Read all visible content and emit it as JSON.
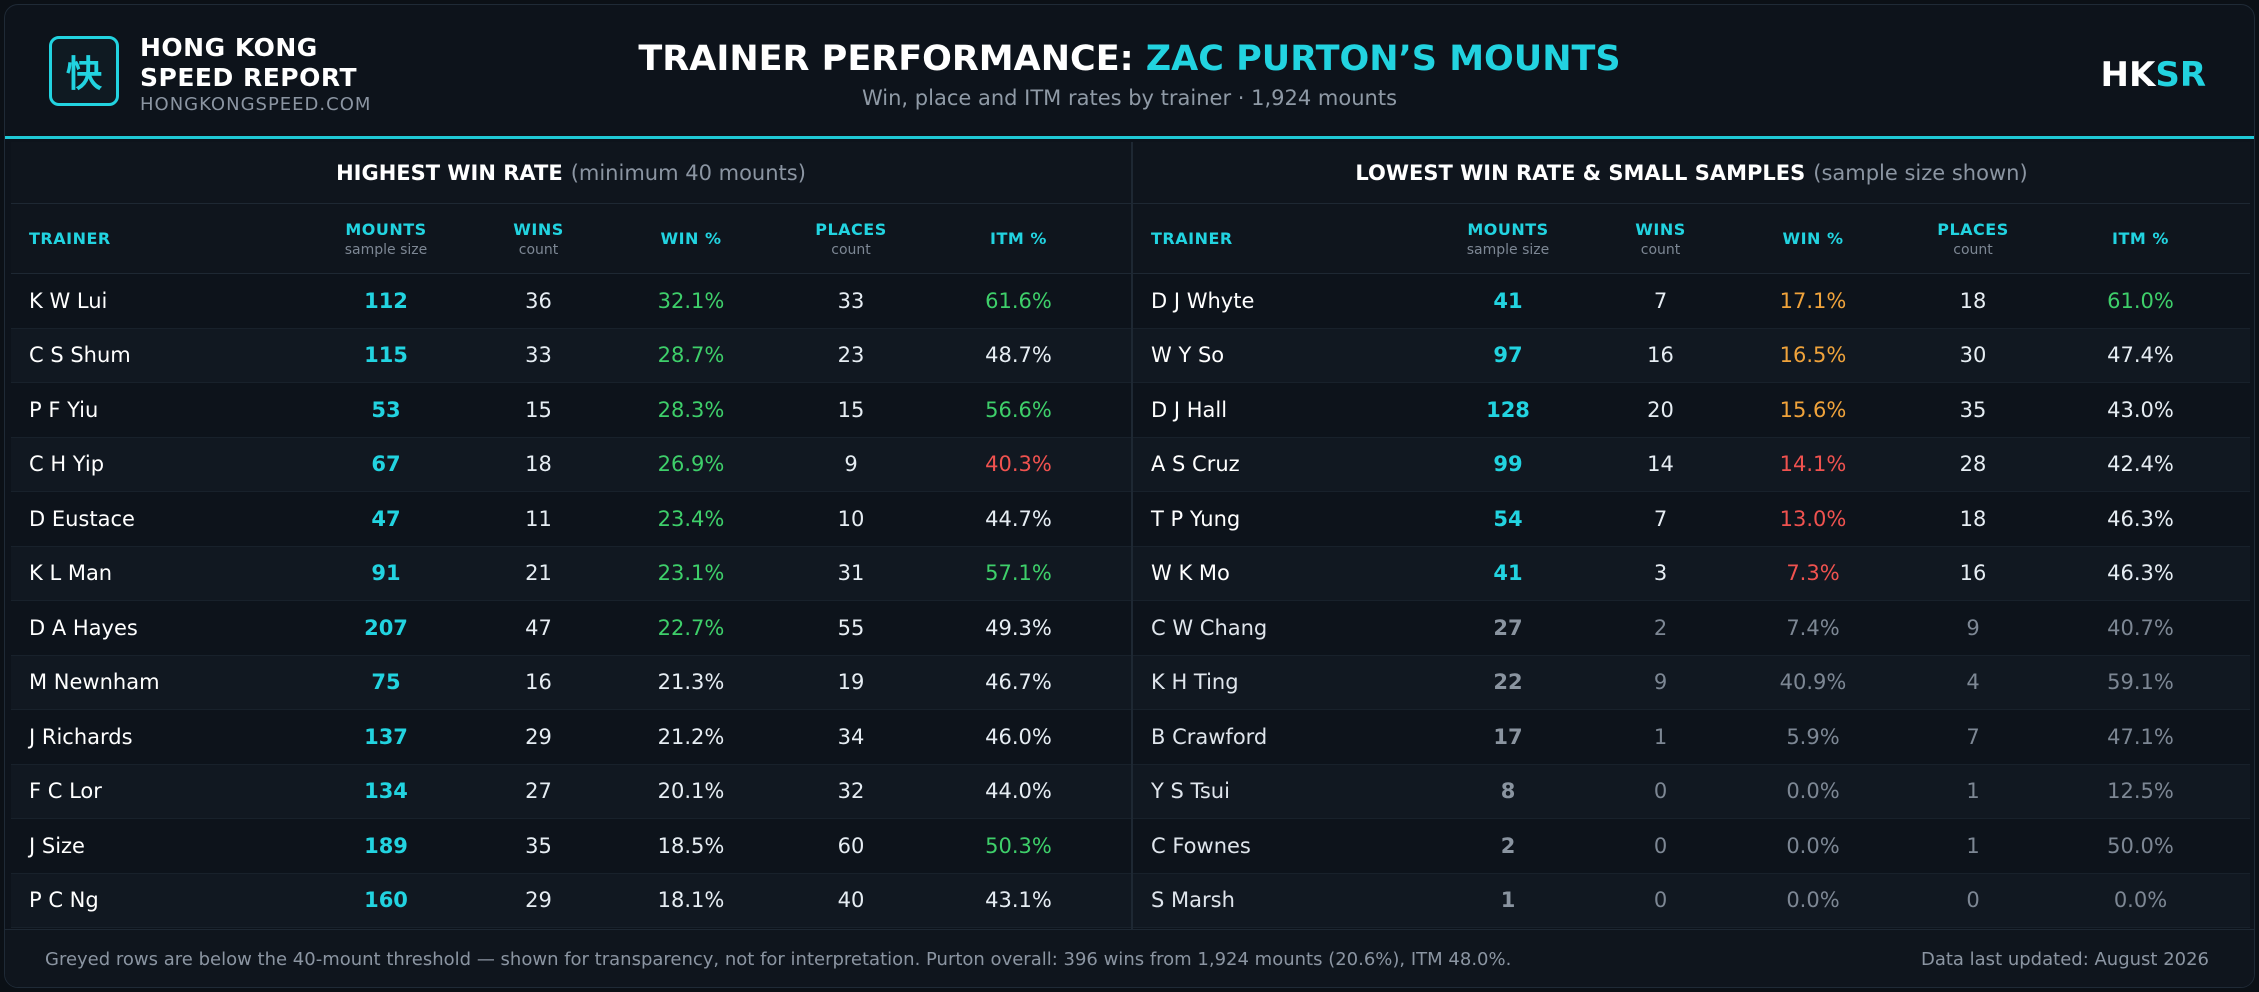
{
  "brand": {
    "logo_glyph": "快",
    "name_line1": "HONG KONG",
    "name_line2": "SPEED REPORT",
    "url": "HONGKONGSPEED.COM"
  },
  "title": {
    "main": "TRAINER PERFORMANCE: ",
    "accent": "ZAC PURTON’S MOUNTS",
    "subtitle": "Win, place and ITM rates by trainer · 1,924 mounts"
  },
  "mark": {
    "a": "HK",
    "b": "SR"
  },
  "columns": {
    "trainer": "TRAINER",
    "mounts": "MOUNTS",
    "mounts_sub": "sample size",
    "wins": "WINS",
    "wins_sub": "count",
    "win_pct": "WIN %",
    "places": "PLACES",
    "places_sub": "count",
    "itm_pct": "ITM %"
  },
  "left": {
    "title": "HIGHEST WIN RATE",
    "note": "(minimum 40 mounts)",
    "rows": [
      {
        "trainer": "K W Lui",
        "mounts": "112",
        "wins": "36",
        "win": "32.1%",
        "win_c": "green",
        "places": "33",
        "itm": "61.6%",
        "itm_c": "green"
      },
      {
        "trainer": "C S Shum",
        "mounts": "115",
        "wins": "33",
        "win": "28.7%",
        "win_c": "green",
        "places": "23",
        "itm": "48.7%",
        "itm_c": "white"
      },
      {
        "trainer": "P F Yiu",
        "mounts": "53",
        "wins": "15",
        "win": "28.3%",
        "win_c": "green",
        "places": "15",
        "itm": "56.6%",
        "itm_c": "green"
      },
      {
        "trainer": "C H Yip",
        "mounts": "67",
        "wins": "18",
        "win": "26.9%",
        "win_c": "green",
        "places": "9",
        "itm": "40.3%",
        "itm_c": "red"
      },
      {
        "trainer": "D Eustace",
        "mounts": "47",
        "wins": "11",
        "win": "23.4%",
        "win_c": "green",
        "places": "10",
        "itm": "44.7%",
        "itm_c": "white"
      },
      {
        "trainer": "K L Man",
        "mounts": "91",
        "wins": "21",
        "win": "23.1%",
        "win_c": "green",
        "places": "31",
        "itm": "57.1%",
        "itm_c": "green"
      },
      {
        "trainer": "D A Hayes",
        "mounts": "207",
        "wins": "47",
        "win": "22.7%",
        "win_c": "green",
        "places": "55",
        "itm": "49.3%",
        "itm_c": "white"
      },
      {
        "trainer": "M Newnham",
        "mounts": "75",
        "wins": "16",
        "win": "21.3%",
        "win_c": "white",
        "places": "19",
        "itm": "46.7%",
        "itm_c": "white"
      },
      {
        "trainer": "J Richards",
        "mounts": "137",
        "wins": "29",
        "win": "21.2%",
        "win_c": "white",
        "places": "34",
        "itm": "46.0%",
        "itm_c": "white"
      },
      {
        "trainer": "F C Lor",
        "mounts": "134",
        "wins": "27",
        "win": "20.1%",
        "win_c": "white",
        "places": "32",
        "itm": "44.0%",
        "itm_c": "white"
      },
      {
        "trainer": "J Size",
        "mounts": "189",
        "wins": "35",
        "win": "18.5%",
        "win_c": "white",
        "places": "60",
        "itm": "50.3%",
        "itm_c": "green"
      },
      {
        "trainer": "P C Ng",
        "mounts": "160",
        "wins": "29",
        "win": "18.1%",
        "win_c": "white",
        "places": "40",
        "itm": "43.1%",
        "itm_c": "white"
      }
    ]
  },
  "right": {
    "title": "LOWEST WIN RATE & SMALL SAMPLES",
    "note": "(sample size shown)",
    "rows": [
      {
        "trainer": "D J Whyte",
        "mounts": "41",
        "wins": "7",
        "win": "17.1%",
        "win_c": "orange",
        "places": "18",
        "itm": "61.0%",
        "itm_c": "green",
        "grey": false
      },
      {
        "trainer": "W Y So",
        "mounts": "97",
        "wins": "16",
        "win": "16.5%",
        "win_c": "orange",
        "places": "30",
        "itm": "47.4%",
        "itm_c": "white",
        "grey": false
      },
      {
        "trainer": "D J Hall",
        "mounts": "128",
        "wins": "20",
        "win": "15.6%",
        "win_c": "orange",
        "places": "35",
        "itm": "43.0%",
        "itm_c": "white",
        "grey": false
      },
      {
        "trainer": "A S Cruz",
        "mounts": "99",
        "wins": "14",
        "win": "14.1%",
        "win_c": "red",
        "places": "28",
        "itm": "42.4%",
        "itm_c": "white",
        "grey": false
      },
      {
        "trainer": "T P Yung",
        "mounts": "54",
        "wins": "7",
        "win": "13.0%",
        "win_c": "red",
        "places": "18",
        "itm": "46.3%",
        "itm_c": "white",
        "grey": false
      },
      {
        "trainer": "W K Mo",
        "mounts": "41",
        "wins": "3",
        "win": "7.3%",
        "win_c": "red",
        "places": "16",
        "itm": "46.3%",
        "itm_c": "white",
        "grey": false
      },
      {
        "trainer": "C W Chang",
        "mounts": "27",
        "wins": "2",
        "win": "7.4%",
        "win_c": "grey",
        "places": "9",
        "itm": "40.7%",
        "itm_c": "grey",
        "grey": true
      },
      {
        "trainer": "K H Ting",
        "mounts": "22",
        "wins": "9",
        "win": "40.9%",
        "win_c": "grey",
        "places": "4",
        "itm": "59.1%",
        "itm_c": "grey",
        "grey": true
      },
      {
        "trainer": "B Crawford",
        "mounts": "17",
        "wins": "1",
        "win": "5.9%",
        "win_c": "grey",
        "places": "7",
        "itm": "47.1%",
        "itm_c": "grey",
        "grey": true
      },
      {
        "trainer": "Y S Tsui",
        "mounts": "8",
        "wins": "0",
        "win": "0.0%",
        "win_c": "grey",
        "places": "1",
        "itm": "12.5%",
        "itm_c": "grey",
        "grey": true
      },
      {
        "trainer": "C Fownes",
        "mounts": "2",
        "wins": "0",
        "win": "0.0%",
        "win_c": "grey",
        "places": "1",
        "itm": "50.0%",
        "itm_c": "grey",
        "grey": true
      },
      {
        "trainer": "S Marsh",
        "mounts": "1",
        "wins": "0",
        "win": "0.0%",
        "win_c": "grey",
        "places": "0",
        "itm": "0.0%",
        "itm_c": "grey",
        "grey": true
      }
    ]
  },
  "footer": {
    "note": "Greyed rows are below the 40-mount threshold — shown for transparency, not for interpretation. Purton overall: 396 wins from 1,924 mounts (20.6%), ITM 48.0%.",
    "updated": "Data last updated: August 2026"
  },
  "colors": {
    "accent": "#22d3e0",
    "good": "#3ecf6a",
    "warn": "#f0a33b",
    "bad": "#f0524f"
  }
}
